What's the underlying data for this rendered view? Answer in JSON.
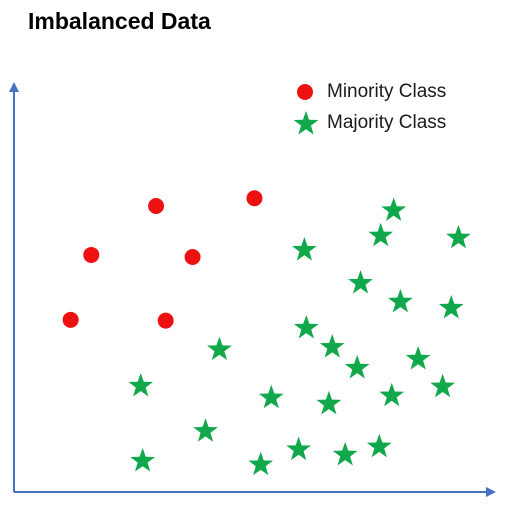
{
  "title": "Imbalanced Data",
  "legend": [
    {
      "label": "Minority Class",
      "marker": "circle",
      "color": "#ee1111"
    },
    {
      "label": "Majority Class",
      "marker": "star",
      "color": "#11a84b"
    }
  ],
  "axis_color": "#4472c4",
  "chart_data": {
    "type": "scatter",
    "title": "Imbalanced Data",
    "xlabel": "",
    "ylabel": "",
    "xlim": [
      0,
      100
    ],
    "ylim": [
      0,
      100
    ],
    "grid": false,
    "legend_position": "top-right",
    "series": [
      {
        "name": "Minority Class",
        "marker": "circle",
        "color": "#ee1111",
        "points": [
          [
            29.6,
            70.1
          ],
          [
            50.1,
            72.0
          ],
          [
            16.1,
            58.1
          ],
          [
            37.2,
            57.6
          ],
          [
            11.8,
            42.2
          ],
          [
            31.6,
            42.0
          ]
        ]
      },
      {
        "name": "Majority Class",
        "marker": "star",
        "color": "#11a84b",
        "points": [
          [
            79.1,
            69.0
          ],
          [
            76.4,
            62.8
          ],
          [
            60.5,
            59.3
          ],
          [
            92.6,
            62.3
          ],
          [
            72.2,
            51.2
          ],
          [
            80.5,
            46.6
          ],
          [
            91.1,
            45.1
          ],
          [
            60.9,
            40.2
          ],
          [
            66.3,
            35.5
          ],
          [
            42.8,
            34.9
          ],
          [
            71.5,
            30.4
          ],
          [
            84.2,
            32.6
          ],
          [
            26.4,
            26.0
          ],
          [
            89.3,
            25.8
          ],
          [
            53.6,
            23.1
          ],
          [
            65.6,
            21.6
          ],
          [
            78.7,
            23.6
          ],
          [
            39.9,
            14.9
          ],
          [
            59.3,
            10.4
          ],
          [
            69.0,
            9.1
          ],
          [
            76.1,
            11.1
          ],
          [
            26.8,
            7.6
          ],
          [
            51.4,
            6.7
          ]
        ]
      }
    ]
  }
}
